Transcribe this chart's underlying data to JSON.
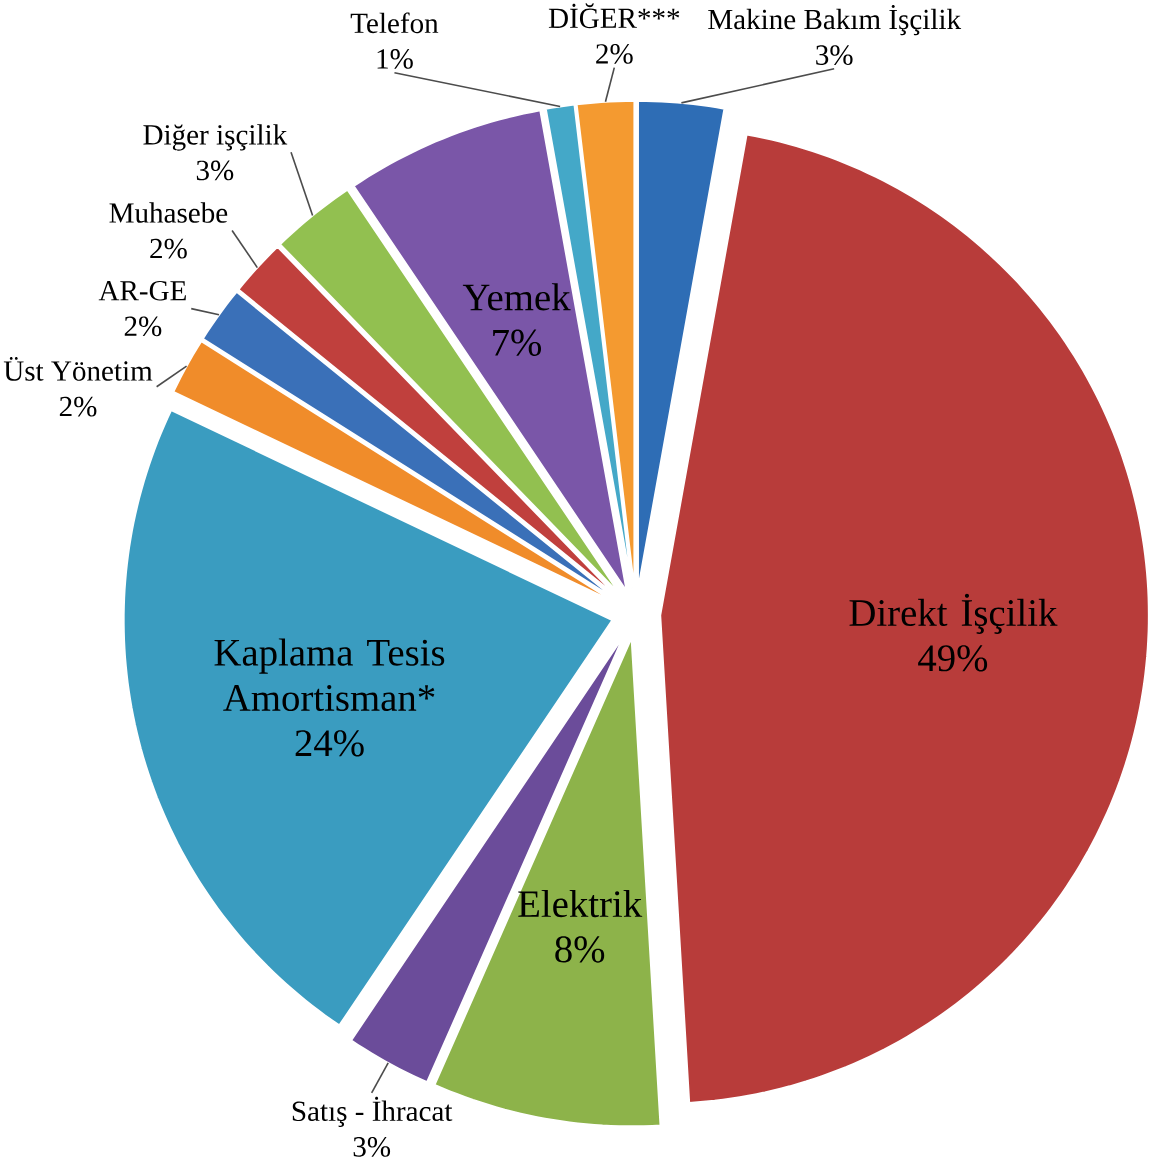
{
  "chart_data": {
    "type": "pie",
    "categories": [
      "Makine Bakım İşçilik",
      "Direkt İşçilik",
      "Elektrik",
      "Satış - İhracat",
      "Kaplama Tesis Amortisman*",
      "Üst Yönetim",
      "AR-GE",
      "Muhasebe",
      "Diğer işçilik",
      "Yemek",
      "Telefon",
      "DİĞER***"
    ],
    "values": [
      3,
      49,
      8,
      3,
      24,
      2,
      2,
      2,
      3,
      7,
      1,
      2
    ],
    "value_labels": [
      "3%",
      "49%",
      "8%",
      "3%",
      "24%",
      "2%",
      "2%",
      "2%",
      "3%",
      "7%",
      "1%",
      "2%"
    ],
    "colors": [
      "#2e6db5",
      "#b83c3a",
      "#8db34a",
      "#6b4c9a",
      "#3a9cc0",
      "#f08c2a",
      "#3a70b8",
      "#c0403d",
      "#92c050",
      "#7a56a8",
      "#44a8c8",
      "#f49a30"
    ]
  }
}
